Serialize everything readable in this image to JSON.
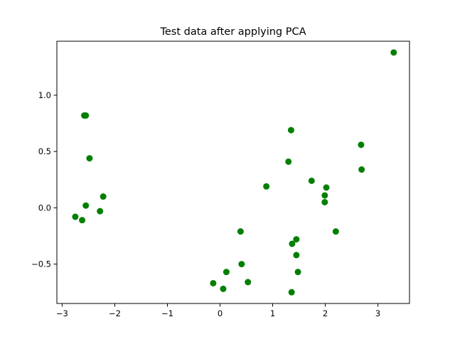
{
  "chart_data": {
    "type": "scatter",
    "title": "Test data after applying PCA",
    "xlabel": "",
    "ylabel": "",
    "xlim": [
      -3.1,
      3.6
    ],
    "ylim": [
      -0.85,
      1.48
    ],
    "xticks": [
      -3,
      -2,
      -1,
      0,
      1,
      2,
      3
    ],
    "yticks": [
      -0.5,
      0.0,
      0.5,
      1.0
    ],
    "xtick_labels": [
      "−3",
      "−2",
      "−1",
      "0",
      "1",
      "2",
      "3"
    ],
    "ytick_labels": [
      "−0.5",
      "0.0",
      "0.5",
      "1.0"
    ],
    "grid": false,
    "legend": "none",
    "marker_color": "#008000",
    "points": [
      {
        "x": -2.58,
        "y": 0.82
      },
      {
        "x": -2.55,
        "y": 0.82
      },
      {
        "x": -2.48,
        "y": 0.44
      },
      {
        "x": -2.22,
        "y": 0.1
      },
      {
        "x": -2.55,
        "y": 0.02
      },
      {
        "x": -2.28,
        "y": -0.03
      },
      {
        "x": -2.75,
        "y": -0.08
      },
      {
        "x": -2.62,
        "y": -0.11
      },
      {
        "x": -0.13,
        "y": -0.67
      },
      {
        "x": 0.06,
        "y": -0.72
      },
      {
        "x": 0.12,
        "y": -0.57
      },
      {
        "x": 0.41,
        "y": -0.5
      },
      {
        "x": 0.39,
        "y": -0.21
      },
      {
        "x": 0.53,
        "y": -0.66
      },
      {
        "x": 0.88,
        "y": 0.19
      },
      {
        "x": 1.3,
        "y": 0.41
      },
      {
        "x": 1.35,
        "y": 0.69
      },
      {
        "x": 1.37,
        "y": -0.32
      },
      {
        "x": 1.45,
        "y": -0.28
      },
      {
        "x": 1.45,
        "y": -0.42
      },
      {
        "x": 1.48,
        "y": -0.57
      },
      {
        "x": 1.36,
        "y": -0.75
      },
      {
        "x": 1.74,
        "y": 0.24
      },
      {
        "x": 1.99,
        "y": 0.11
      },
      {
        "x": 2.02,
        "y": 0.18
      },
      {
        "x": 1.99,
        "y": 0.05
      },
      {
        "x": 2.2,
        "y": -0.21
      },
      {
        "x": 2.68,
        "y": 0.56
      },
      {
        "x": 2.69,
        "y": 0.34
      },
      {
        "x": 3.3,
        "y": 1.38
      }
    ]
  }
}
